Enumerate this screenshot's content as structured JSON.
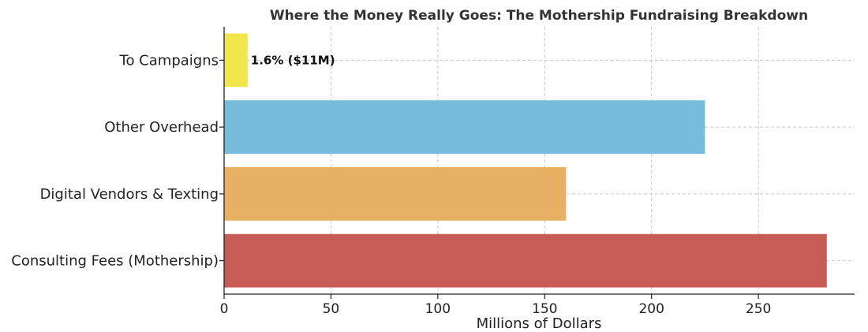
{
  "chart_data": {
    "type": "bar",
    "orientation": "horizontal",
    "title": "Where the Money Really Goes: The Mothership Fundraising Breakdown",
    "xlabel": "Millions of Dollars",
    "ylabel": "",
    "xlim": [
      0,
      295
    ],
    "xticks": [
      0,
      50,
      100,
      150,
      200,
      250
    ],
    "grid": true,
    "categories": [
      "Consulting Fees (Mothership)",
      "Digital Vendors & Texting",
      "Other Overhead",
      "To Campaigns"
    ],
    "values": [
      282,
      160,
      225,
      11
    ],
    "colors": [
      "#c75c57",
      "#e8b062",
      "#78bcdb",
      "#f2e64d"
    ],
    "annotations": [
      {
        "category": "To Campaigns",
        "text": "1.6% ($11M)"
      }
    ]
  }
}
